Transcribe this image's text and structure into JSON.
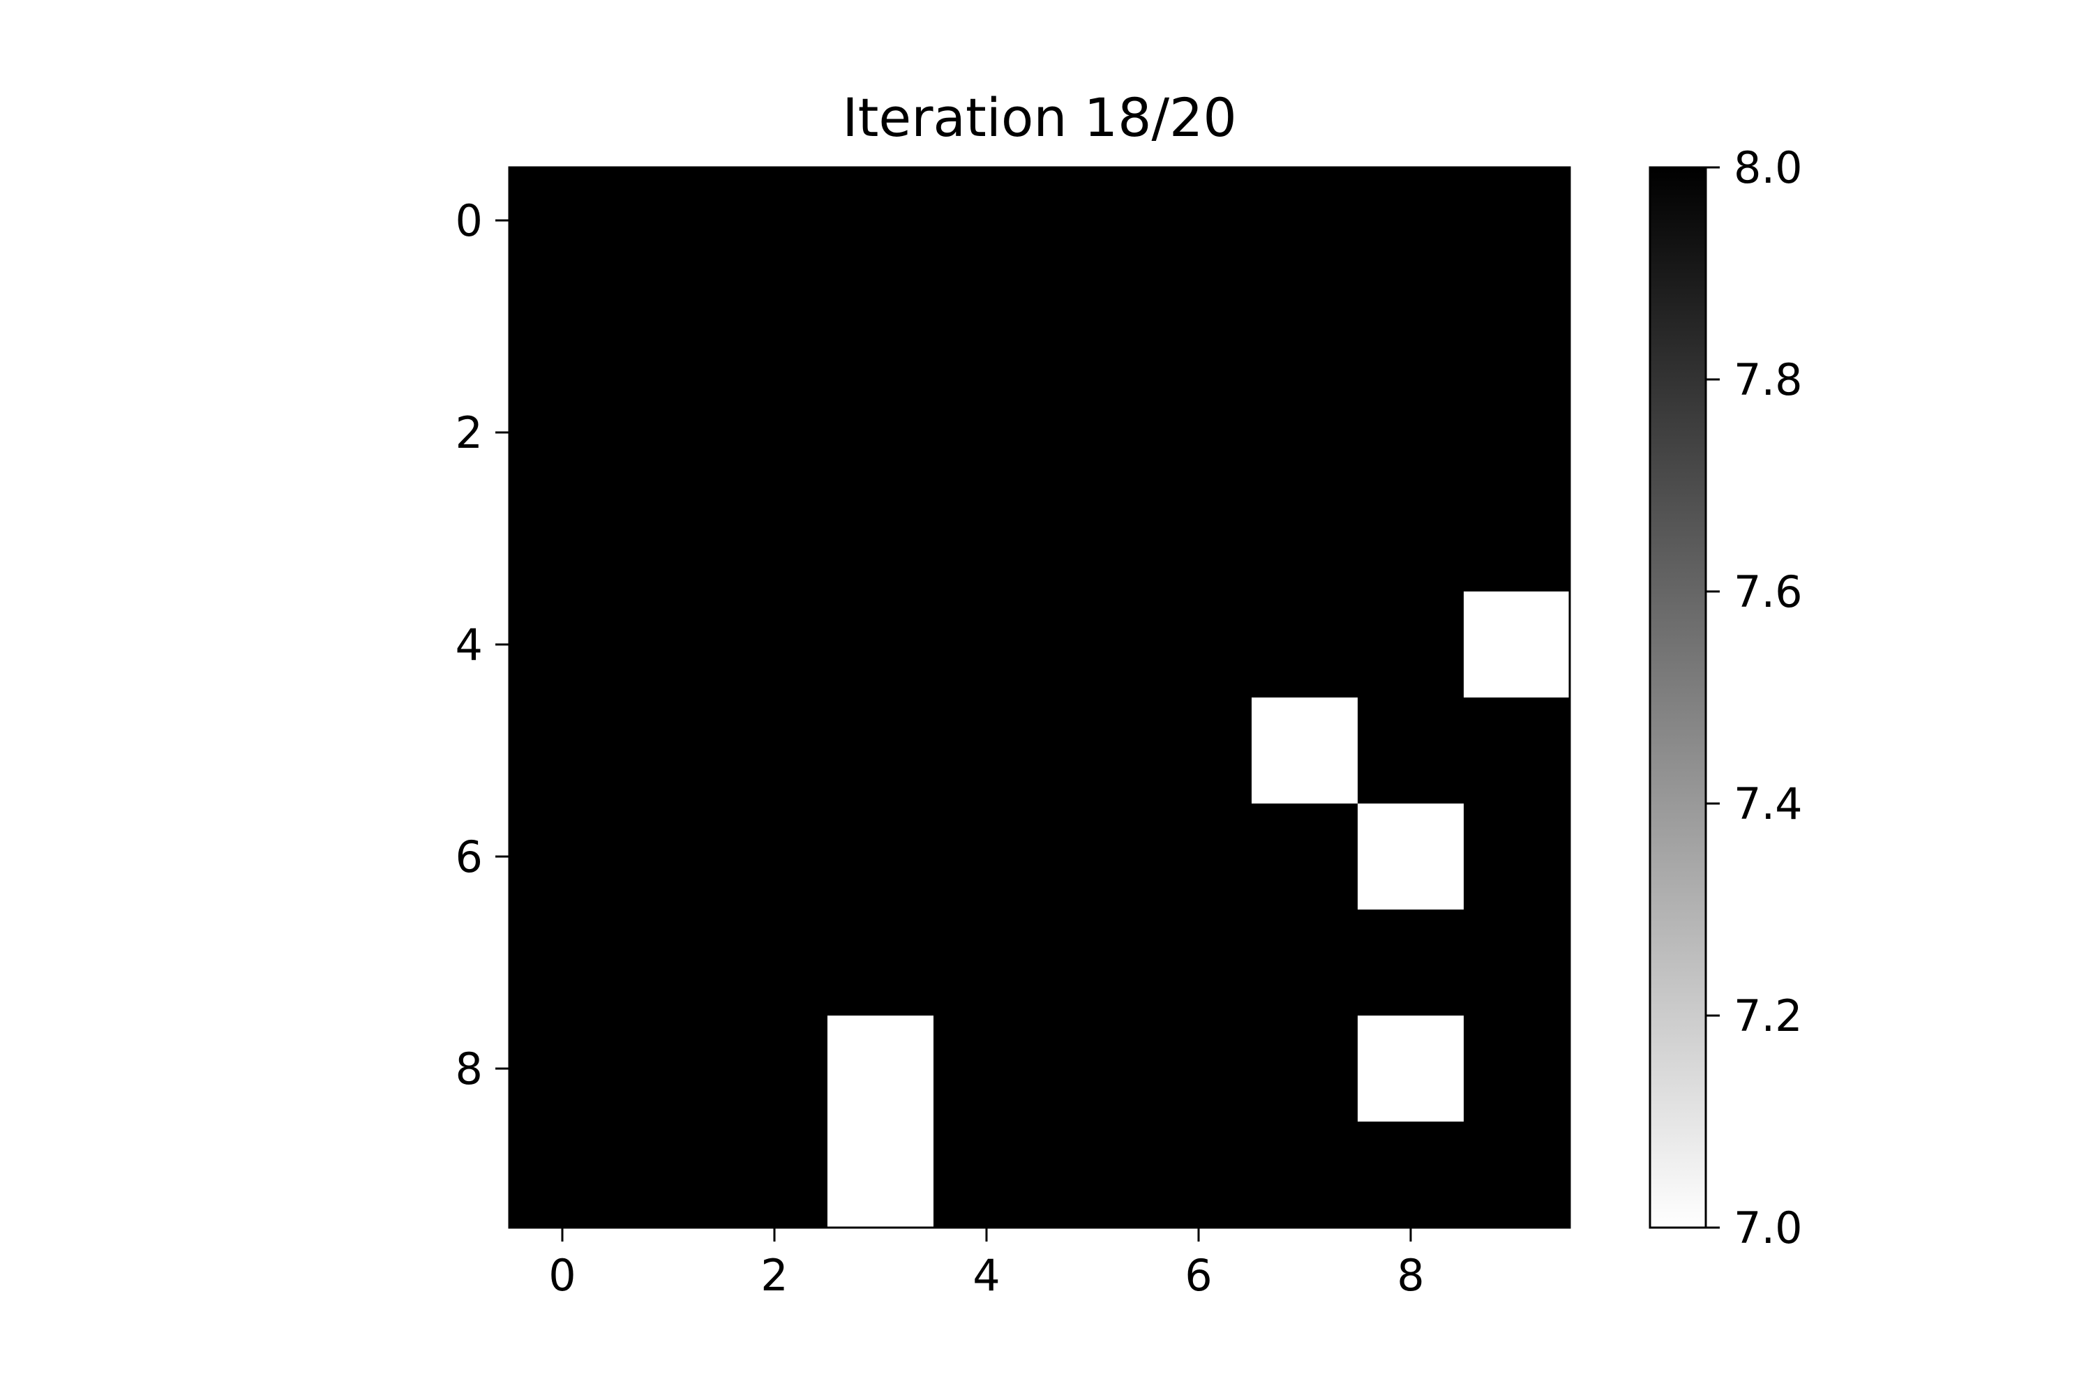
{
  "chart_data": {
    "type": "heatmap",
    "title": "Iteration 18/20",
    "xlabel": "",
    "ylabel": "",
    "rows": 10,
    "cols": 10,
    "values": [
      [
        8,
        8,
        8,
        8,
        8,
        8,
        8,
        8,
        8,
        8
      ],
      [
        8,
        8,
        8,
        8,
        8,
        8,
        8,
        8,
        8,
        8
      ],
      [
        8,
        8,
        8,
        8,
        8,
        8,
        8,
        8,
        8,
        8
      ],
      [
        8,
        8,
        8,
        8,
        8,
        8,
        8,
        8,
        8,
        8
      ],
      [
        8,
        8,
        8,
        8,
        8,
        8,
        8,
        8,
        8,
        7
      ],
      [
        8,
        8,
        8,
        8,
        8,
        8,
        8,
        7,
        8,
        8
      ],
      [
        8,
        8,
        8,
        8,
        8,
        8,
        8,
        8,
        7,
        8
      ],
      [
        8,
        8,
        8,
        8,
        8,
        8,
        8,
        8,
        8,
        8
      ],
      [
        8,
        8,
        8,
        7,
        8,
        8,
        8,
        8,
        7,
        8
      ],
      [
        8,
        8,
        8,
        7,
        8,
        8,
        8,
        8,
        8,
        8
      ]
    ],
    "x_ticks": [
      "0",
      "2",
      "4",
      "6",
      "8"
    ],
    "y_ticks": [
      "0",
      "2",
      "4",
      "6",
      "8"
    ],
    "x_tick_values": [
      0,
      2,
      4,
      6,
      8
    ],
    "y_tick_values": [
      0,
      2,
      4,
      6,
      8
    ],
    "colorbar": {
      "min": 7.0,
      "max": 8.0,
      "ticks": [
        "7.0",
        "7.2",
        "7.4",
        "7.6",
        "7.8",
        "8.0"
      ],
      "tick_values": [
        7.0,
        7.2,
        7.4,
        7.6,
        7.8,
        8.0
      ],
      "colormap": "gray_r",
      "low_color": "#ffffff",
      "high_color": "#000000"
    },
    "grid": false,
    "legend": "none"
  }
}
